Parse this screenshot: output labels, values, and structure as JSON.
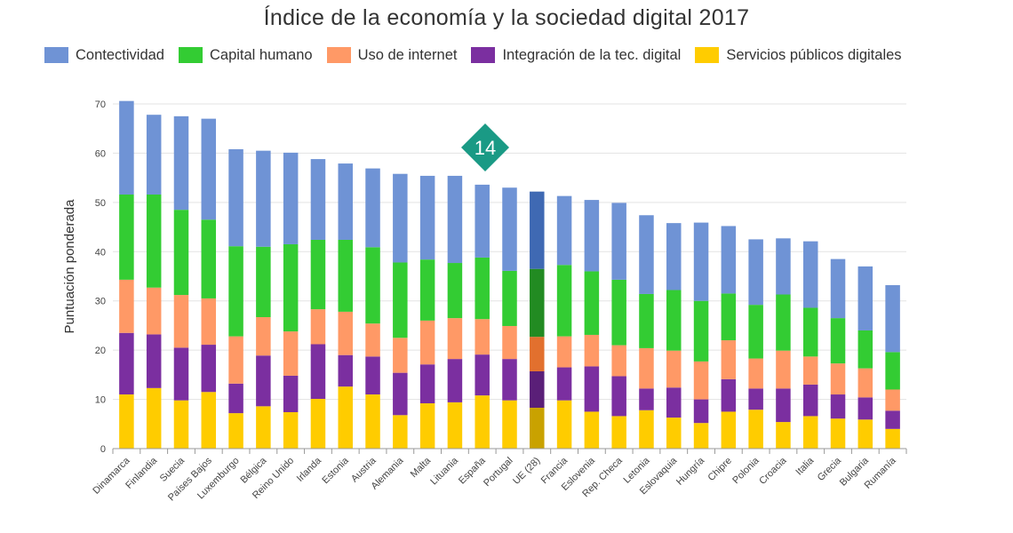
{
  "chart_data": {
    "type": "bar",
    "stacked": true,
    "title": "Índice de la economía y la sociedad digital 2017",
    "ylabel": "Puntuación ponderada",
    "xlabel": "",
    "ylim": [
      0,
      70
    ],
    "yticks": [
      0,
      10,
      20,
      30,
      40,
      50,
      60,
      70
    ],
    "grid": true,
    "legend_position": "top",
    "categories": [
      "Dinamarca",
      "Finlandia",
      "Suecia",
      "Países Bajos",
      "Luxemburgo",
      "Bélgica",
      "Reino Unido",
      "Irlanda",
      "Estonia",
      "Austria",
      "Alemania",
      "Malta",
      "Lituania",
      "España",
      "Portugal",
      "UE (28)",
      "Francia",
      "Eslovenia",
      "Rep. Checa",
      "Letonia",
      "Eslovaquia",
      "Hungría",
      "Chipre",
      "Polonia",
      "Croacia",
      "Italia",
      "Grecia",
      "Bulgaria",
      "Rumanía"
    ],
    "highlight_category": "UE (28)",
    "series": [
      {
        "name": "Servicios públicos digitales",
        "color": "#FFCC00",
        "highlight_color": "#C9A200",
        "values": [
          11.0,
          12.3,
          9.8,
          11.5,
          7.2,
          8.6,
          7.4,
          10.1,
          12.6,
          11.0,
          6.8,
          9.2,
          9.4,
          10.8,
          9.8,
          8.3,
          9.8,
          7.5,
          6.6,
          7.8,
          6.3,
          5.2,
          7.5,
          7.9,
          5.4,
          6.6,
          6.1,
          5.9,
          4.0
        ]
      },
      {
        "name": "Integración de la tec. digital",
        "color": "#7B2FA0",
        "highlight_color": "#5A1F78",
        "values": [
          12.5,
          10.9,
          10.7,
          9.6,
          6.0,
          10.3,
          7.4,
          11.1,
          6.4,
          7.7,
          8.6,
          7.9,
          8.8,
          8.3,
          8.4,
          7.4,
          6.7,
          9.2,
          8.1,
          4.4,
          6.1,
          4.8,
          6.6,
          4.3,
          6.8,
          6.4,
          4.9,
          4.5,
          3.7
        ]
      },
      {
        "name": "Uso de internet",
        "color": "#FF9966",
        "highlight_color": "#E2702E",
        "values": [
          10.8,
          9.5,
          10.7,
          9.4,
          9.6,
          7.8,
          9.0,
          7.1,
          8.8,
          6.7,
          7.1,
          8.9,
          8.3,
          7.2,
          6.7,
          7.0,
          6.3,
          6.4,
          6.3,
          8.2,
          7.5,
          7.7,
          7.9,
          6.1,
          7.7,
          5.7,
          6.3,
          5.9,
          4.3
        ]
      },
      {
        "name": "Capital humano",
        "color": "#33CC33",
        "highlight_color": "#228B22",
        "values": [
          17.3,
          18.9,
          17.3,
          16.0,
          18.3,
          14.3,
          17.7,
          14.1,
          14.6,
          15.5,
          15.3,
          12.4,
          11.2,
          12.5,
          11.2,
          13.8,
          14.5,
          12.9,
          13.3,
          11.0,
          12.3,
          12.3,
          9.5,
          10.9,
          11.4,
          9.9,
          9.2,
          7.7,
          7.6
        ]
      },
      {
        "name": "Contectividad",
        "color": "#6F93D5",
        "highlight_color": "#3F69B3",
        "values": [
          19.0,
          16.2,
          19.0,
          20.5,
          19.7,
          19.5,
          18.6,
          16.4,
          15.5,
          16.0,
          18.0,
          17.0,
          17.7,
          14.8,
          16.9,
          15.7,
          14.0,
          14.5,
          15.6,
          16.0,
          13.6,
          15.9,
          13.7,
          13.3,
          11.4,
          13.5,
          12.0,
          13.0,
          13.6
        ]
      }
    ]
  },
  "badge": {
    "text": "14",
    "color": "#1A9A85"
  }
}
